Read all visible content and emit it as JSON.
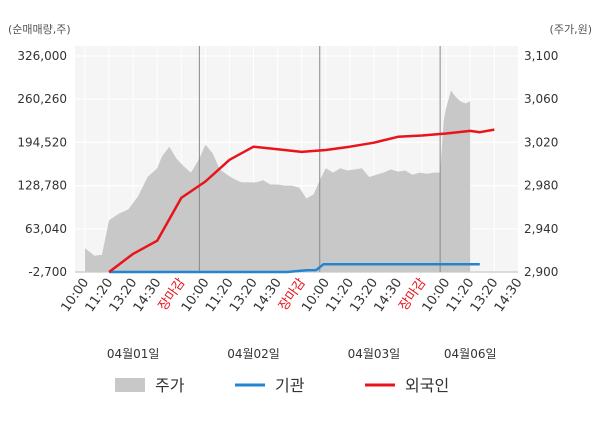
{
  "chart_data": {
    "type": "line",
    "left_unit_label": "(순매매량,주)",
    "right_unit_label": "(주가,원)",
    "left_axis": {
      "ticks": [
        326000,
        260260,
        194520,
        128780,
        63040,
        -2700
      ],
      "tick_labels": [
        "326,000",
        "260,260",
        "194,520",
        "128,780",
        "63,040",
        "-2,700"
      ],
      "range": [
        -2700,
        326000
      ]
    },
    "right_axis": {
      "ticks": [
        3100,
        3060,
        3020,
        2980,
        2940,
        2900
      ],
      "tick_labels": [
        "3,100",
        "3,060",
        "3,020",
        "2,980",
        "2,940",
        "2,900"
      ],
      "range": [
        2900,
        3100
      ]
    },
    "x_tick_labels": [
      {
        "pos": 0,
        "label": "10:00",
        "color": "#333333"
      },
      {
        "pos": 1,
        "label": "11:20",
        "color": "#333333"
      },
      {
        "pos": 2,
        "label": "13:20",
        "color": "#333333"
      },
      {
        "pos": 3,
        "label": "14:30",
        "color": "#333333"
      },
      {
        "pos": 4,
        "label": "장마감",
        "color": "#e8141b"
      },
      {
        "pos": 5,
        "label": "10:00",
        "color": "#333333"
      },
      {
        "pos": 6,
        "label": "11:20",
        "color": "#333333"
      },
      {
        "pos": 7,
        "label": "13:20",
        "color": "#333333"
      },
      {
        "pos": 8,
        "label": "14:30",
        "color": "#333333"
      },
      {
        "pos": 9,
        "label": "장마감",
        "color": "#e8141b"
      },
      {
        "pos": 10,
        "label": "10:00",
        "color": "#333333"
      },
      {
        "pos": 11,
        "label": "11:20",
        "color": "#333333"
      },
      {
        "pos": 12,
        "label": "13:20",
        "color": "#333333"
      },
      {
        "pos": 13,
        "label": "14:30",
        "color": "#333333"
      },
      {
        "pos": 14,
        "label": "장마감",
        "color": "#e8141b"
      },
      {
        "pos": 15,
        "label": "10:00",
        "color": "#333333"
      },
      {
        "pos": 16,
        "label": "11:20",
        "color": "#333333"
      },
      {
        "pos": 17,
        "label": "13:20",
        "color": "#333333"
      },
      {
        "pos": 18,
        "label": "14:30",
        "color": "#333333"
      }
    ],
    "date_labels": [
      {
        "label": "04월01일",
        "center": 2
      },
      {
        "label": "04월02일",
        "center": 7
      },
      {
        "label": "04월03일",
        "center": 12
      },
      {
        "label": "04월06일",
        "center": 16
      }
    ],
    "day_dividers": [
      4.75,
      9.75,
      14.75
    ],
    "series": [
      {
        "name": "주가",
        "kind": "area",
        "axis": "right",
        "color": "#c8c8c8",
        "x": [
          0,
          0.4,
          0.7,
          1,
          1.4,
          1.8,
          2.2,
          2.6,
          3,
          3.2,
          3.5,
          3.8,
          4.1,
          4.4,
          4.75,
          5,
          5.3,
          5.6,
          5.9,
          6.2,
          6.5,
          6.8,
          7.1,
          7.4,
          7.7,
          8,
          8.3,
          8.6,
          8.9,
          9.2,
          9.5,
          9.75,
          10,
          10.3,
          10.6,
          10.9,
          11.2,
          11.5,
          11.8,
          12.1,
          12.4,
          12.7,
          13,
          13.3,
          13.6,
          13.9,
          14.2,
          14.5,
          14.75,
          14.9,
          15,
          15.2,
          15.4,
          15.6,
          15.8,
          16
        ],
        "values": [
          2922,
          2915,
          2916,
          2948,
          2954,
          2958,
          2970,
          2988,
          2996,
          3007,
          3016,
          3005,
          2998,
          2992,
          3005,
          3018,
          3010,
          2995,
          2990,
          2986,
          2983,
          2983,
          2983,
          2985,
          2981,
          2981,
          2980,
          2980,
          2978,
          2968,
          2972,
          2985,
          2996,
          2992,
          2996,
          2994,
          2995,
          2996,
          2988,
          2990,
          2992,
          2995,
          2993,
          2994,
          2990,
          2992,
          2991,
          2992,
          2992,
          3040,
          3052,
          3068,
          3062,
          3058,
          3056,
          3058
        ]
      },
      {
        "name": "기관",
        "kind": "line",
        "axis": "left",
        "color": "#2384d0",
        "x": [
          1,
          2,
          4,
          6,
          7,
          8.4,
          9.2,
          9.6,
          9.9,
          11,
          12,
          14,
          15,
          16,
          16.4
        ],
        "values": [
          -2700,
          -2700,
          -2700,
          -2700,
          -2700,
          -2700,
          0,
          200,
          9000,
          9000,
          9000,
          9000,
          9000,
          9000,
          9000
        ]
      },
      {
        "name": "외국인",
        "kind": "line",
        "axis": "left",
        "color": "#e8141b",
        "x": [
          1,
          2,
          3,
          4,
          5,
          6,
          7,
          8,
          9,
          10,
          11,
          12,
          13,
          14,
          15,
          16,
          16.4,
          17
        ],
        "values": [
          -2700,
          25000,
          45000,
          110000,
          135000,
          168000,
          188000,
          184000,
          180000,
          183000,
          188000,
          194000,
          203000,
          205000,
          208000,
          212000,
          210000,
          214000
        ]
      }
    ],
    "legend": {
      "placement": "bottom",
      "items": [
        {
          "label": "주가",
          "marker": "area",
          "color": "#c8c8c8"
        },
        {
          "label": "기관",
          "marker": "line",
          "color": "#2384d0"
        },
        {
          "label": "외국인",
          "marker": "line",
          "color": "#e8141b"
        }
      ]
    },
    "grid": true
  }
}
